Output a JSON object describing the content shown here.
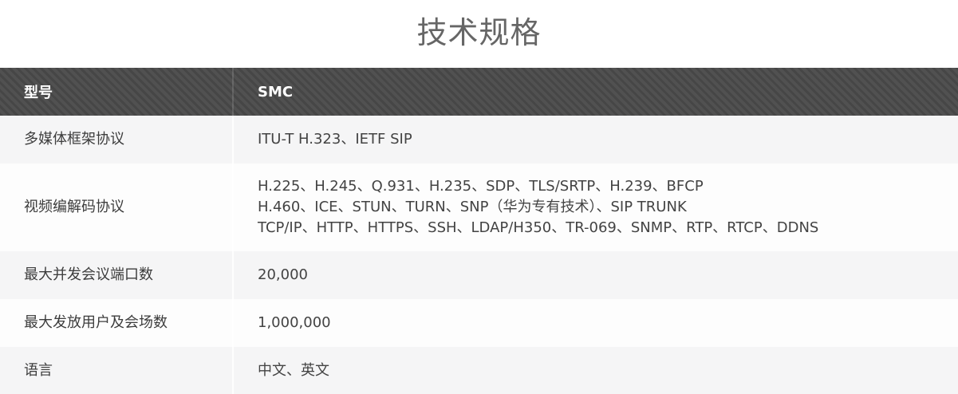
{
  "page": {
    "title": "技术规格"
  },
  "table": {
    "header": {
      "col1": "型号",
      "col2": "SMC"
    },
    "rows": [
      {
        "label": "多媒体框架协议",
        "value_lines": [
          "ITU-T H.323、IETF SIP"
        ]
      },
      {
        "label": "视频编解码协议",
        "value_lines": [
          "H.225、H.245、Q.931、H.235、SDP、TLS/SRTP、H.239、BFCP",
          "H.460、ICE、STUN、TURN、SNP（华为专有技术）、SIP TRUNK",
          "TCP/IP、HTTP、HTTPS、SSH、LDAP/H350、TR-069、SNMP、RTP、RTCP、DDNS"
        ]
      },
      {
        "label": "最大并发会议端口数",
        "value_lines": [
          "20,000"
        ]
      },
      {
        "label": "最大发放用户及会场数",
        "value_lines": [
          "1,000,000"
        ]
      },
      {
        "label": "语言",
        "value_lines": [
          "中文、英文"
        ]
      }
    ]
  },
  "colors": {
    "header_bg": "#4e4e4e",
    "header_text": "#ffffff",
    "row_odd_bg": "#f5f5f6",
    "row_even_bg": "#fdfdfd",
    "title_text": "#666666",
    "body_text": "#3c3c3c"
  }
}
